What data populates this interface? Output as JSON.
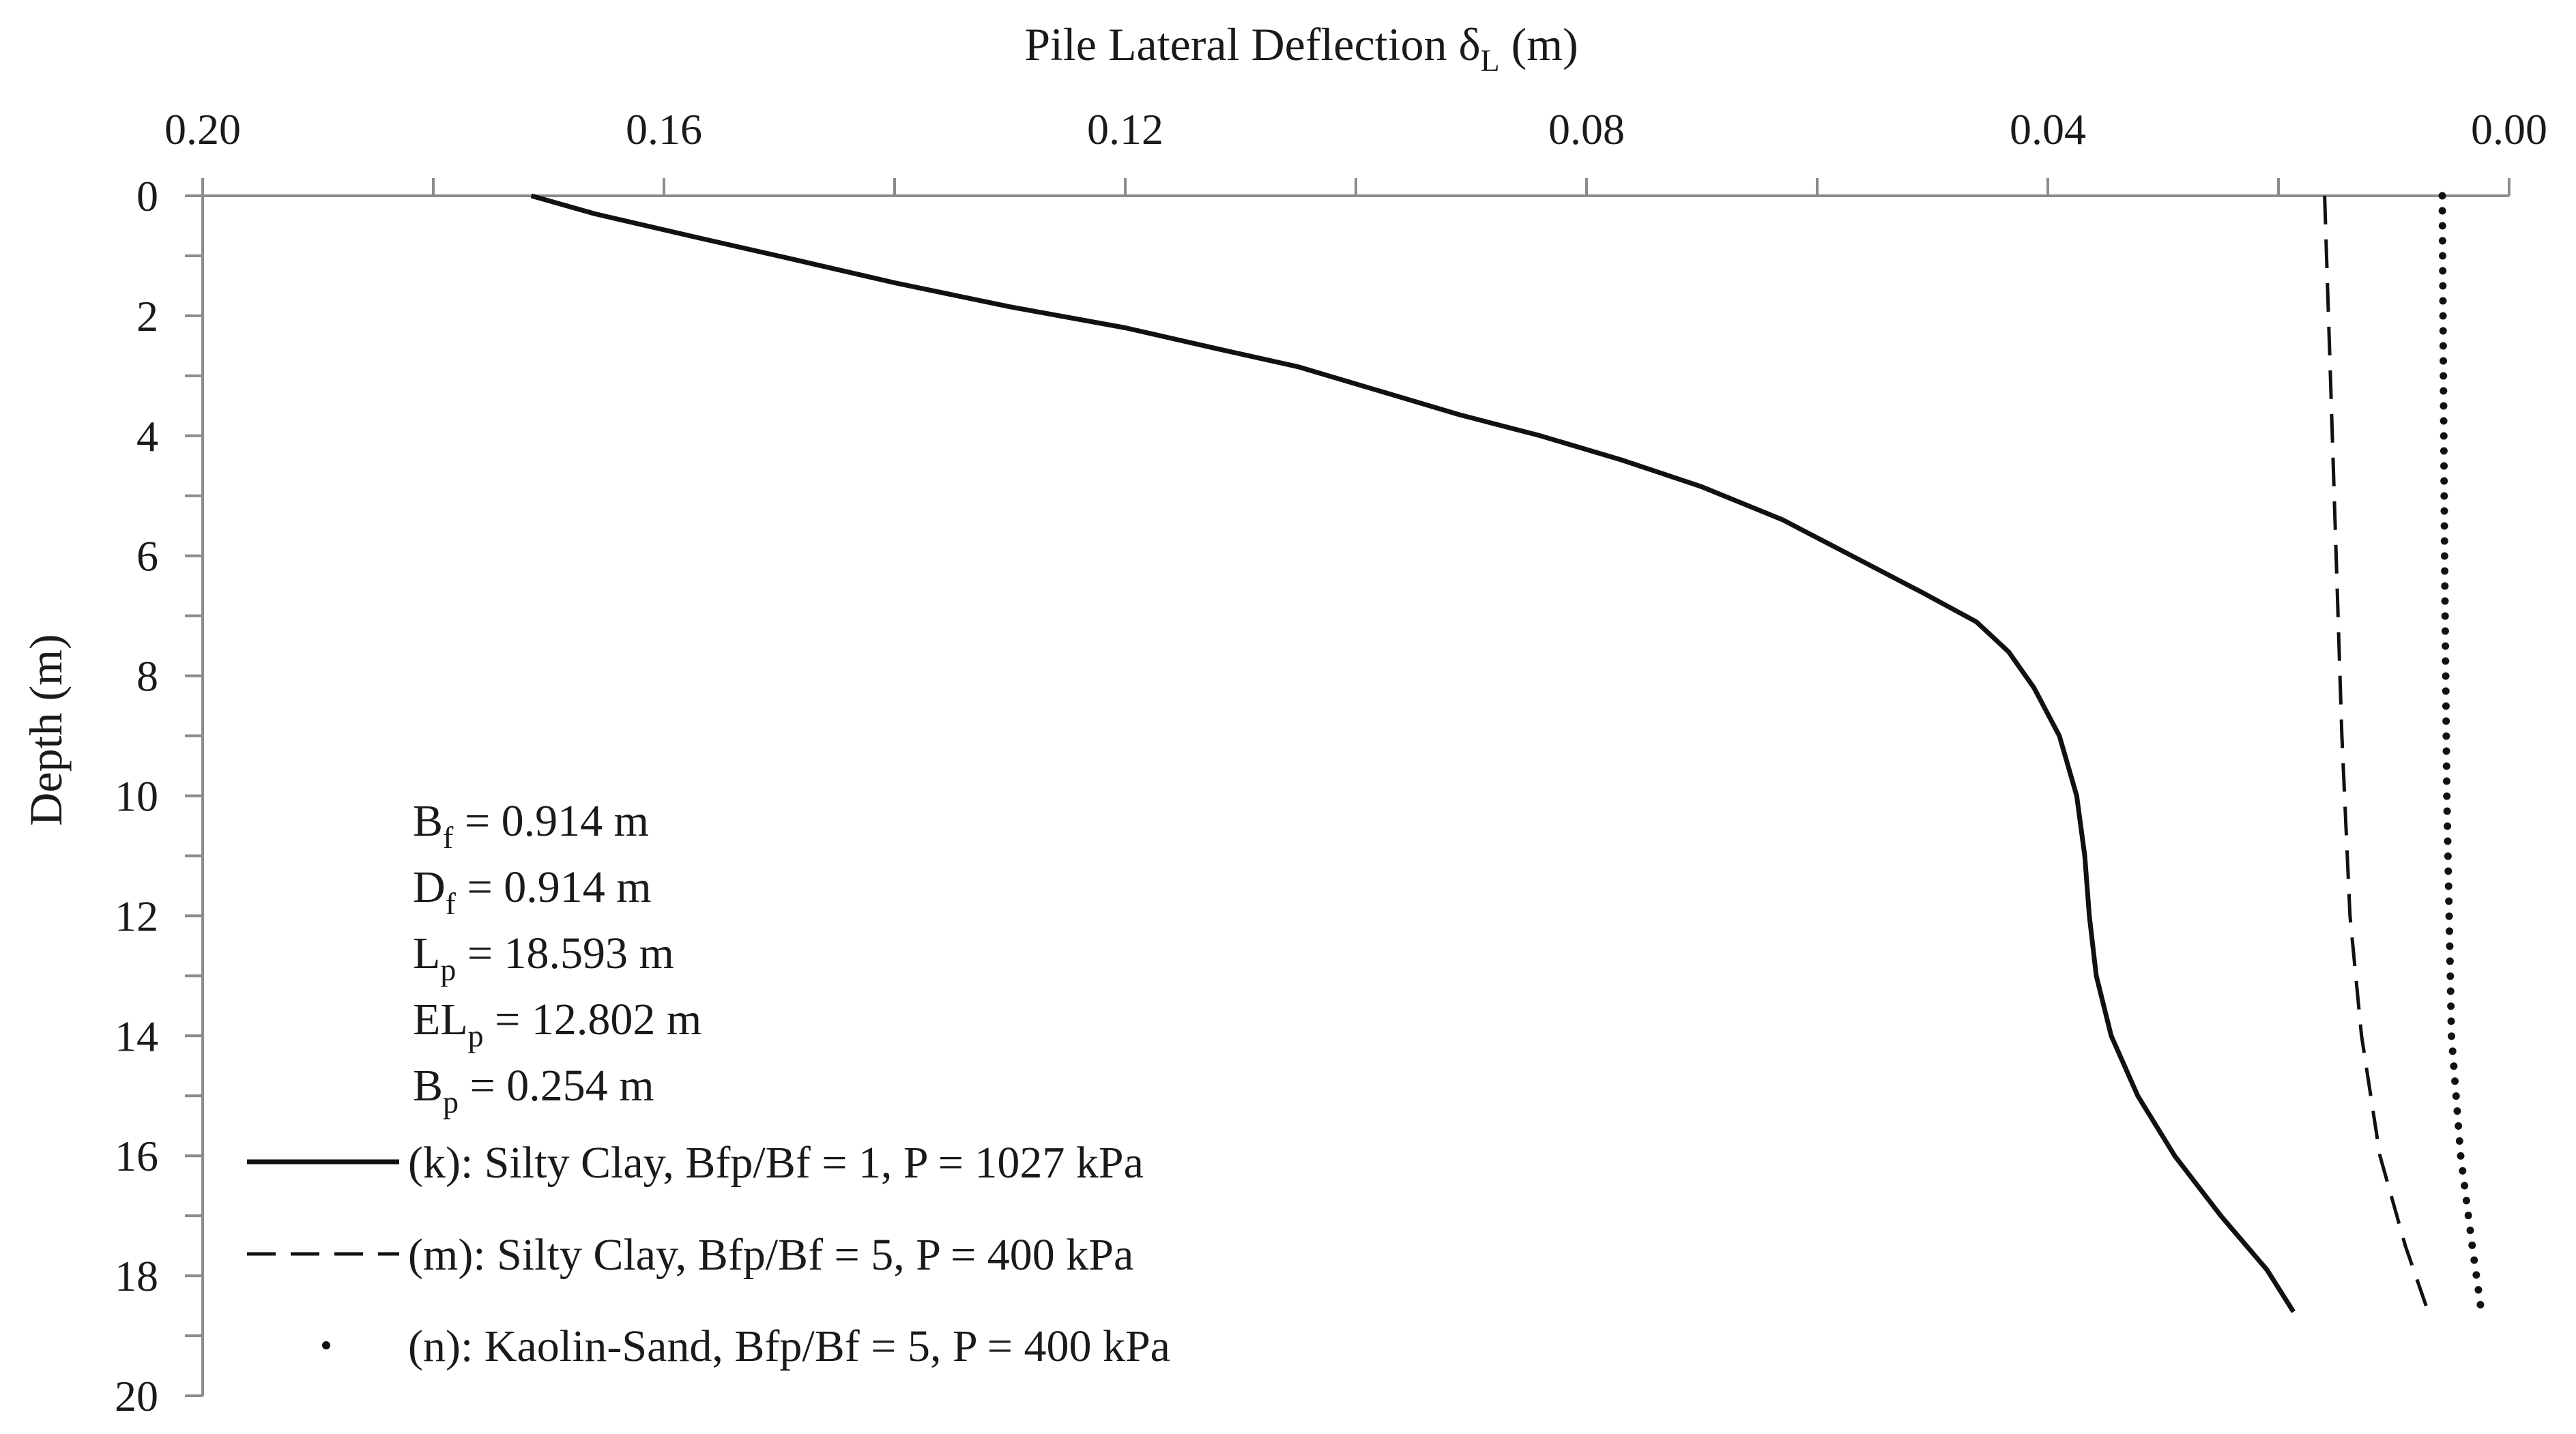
{
  "chart_data": {
    "type": "line",
    "title": "",
    "xlabel_main": "Pile Lateral Deflection δ",
    "xlabel_sub": "L",
    "xlabel_unit": " (m)",
    "ylabel": "Depth (m)",
    "xlim": [
      0.2,
      0.0
    ],
    "ylim": [
      0,
      20
    ],
    "x_ticks": [
      0.2,
      0.16,
      0.12,
      0.08,
      0.04,
      0.0
    ],
    "x_tick_labels": [
      "0.20",
      "0.16",
      "0.12",
      "0.08",
      "0.04",
      "0.00"
    ],
    "y_ticks": [
      0,
      2,
      4,
      6,
      8,
      10,
      12,
      14,
      16,
      18,
      20
    ],
    "y_tick_labels": [
      "0",
      "2",
      "4",
      "6",
      "8",
      "10",
      "12",
      "14",
      "16",
      "18",
      "20"
    ],
    "series": [
      {
        "name": "(k): Silty Clay, Bfp/Bf = 1, P = 1027  kPa",
        "style": "solid",
        "points": [
          [
            0.1715,
            0.0
          ],
          [
            0.166,
            0.3
          ],
          [
            0.157,
            0.7
          ],
          [
            0.149,
            1.05
          ],
          [
            0.14,
            1.45
          ],
          [
            0.13,
            1.85
          ],
          [
            0.12,
            2.2
          ],
          [
            0.112,
            2.55
          ],
          [
            0.105,
            2.85
          ],
          [
            0.098,
            3.25
          ],
          [
            0.091,
            3.65
          ],
          [
            0.084,
            4.0
          ],
          [
            0.077,
            4.4
          ],
          [
            0.07,
            4.85
          ],
          [
            0.063,
            5.4
          ],
          [
            0.057,
            6.0
          ],
          [
            0.051,
            6.6
          ],
          [
            0.0462,
            7.1
          ],
          [
            0.0434,
            7.6
          ],
          [
            0.0412,
            8.2
          ],
          [
            0.039,
            9.0
          ],
          [
            0.0375,
            10.0
          ],
          [
            0.0368,
            11.0
          ],
          [
            0.0364,
            12.0
          ],
          [
            0.0358,
            13.0
          ],
          [
            0.0345,
            14.0
          ],
          [
            0.0322,
            15.0
          ],
          [
            0.029,
            16.0
          ],
          [
            0.025,
            17.0
          ],
          [
            0.021,
            17.9
          ],
          [
            0.0187,
            18.6
          ]
        ]
      },
      {
        "name": "(m): Silty Clay, Bfp/Bf = 5, P = 400 kPa",
        "style": "dashed",
        "points": [
          [
            0.016,
            0.0
          ],
          [
            0.0155,
            3.0
          ],
          [
            0.015,
            6.0
          ],
          [
            0.0145,
            9.0
          ],
          [
            0.0138,
            12.0
          ],
          [
            0.0128,
            14.0
          ],
          [
            0.0112,
            16.0
          ],
          [
            0.009,
            17.5
          ],
          [
            0.0072,
            18.5
          ]
        ]
      },
      {
        "name": "(n): Kaolin-Sand, Bfp/Bf = 5, P = 400 kPa",
        "style": "dotted",
        "points": [
          [
            0.0058,
            0.0
          ],
          [
            0.0056,
            6.0
          ],
          [
            0.0054,
            10.0
          ],
          [
            0.005,
            14.0
          ],
          [
            0.0042,
            16.0
          ],
          [
            0.0032,
            17.5
          ],
          [
            0.0024,
            18.6
          ]
        ]
      }
    ],
    "annotations": [
      {
        "main": "B",
        "sub": "f",
        "rest": "  = 0.914 m"
      },
      {
        "main": "D",
        "sub": "f",
        "rest": "  = 0.914 m"
      },
      {
        "main": "L",
        "sub": "p",
        "rest": " = 18.593 m"
      },
      {
        "main": "EL",
        "sub": "p",
        "rest": " = 12.802 m"
      },
      {
        "main": "B",
        "sub": "p",
        "rest": " = 0.254 m"
      }
    ],
    "grid": false,
    "legend_position": "bottom-left"
  }
}
